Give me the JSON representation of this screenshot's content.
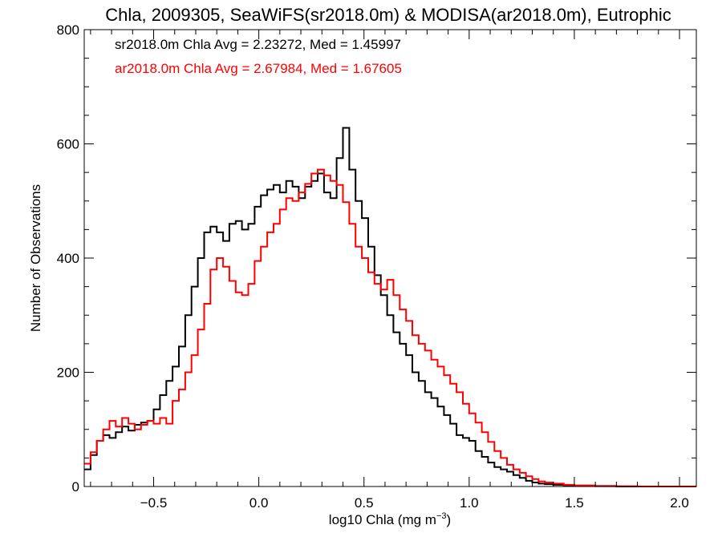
{
  "chart_data": {
    "type": "histogram-step",
    "title": "Chla, 2009305, SeaWiFS(sr2018.0m) & MODISA(ar2018.0m), Eutrophic",
    "xlabel_main": "log10 Chla (mg m",
    "xlabel_sup": "−3",
    "xlabel_end": ")",
    "ylabel": "Number of Observations",
    "xlim": [
      -0.83,
      2.08
    ],
    "ylim": [
      0,
      800
    ],
    "x_ticks": [
      -0.5,
      0.0,
      0.5,
      1.0,
      1.5,
      2.0
    ],
    "x_tick_labels": [
      "−0.5",
      "0.0",
      "0.5",
      "1.0",
      "1.5",
      "2.0"
    ],
    "y_ticks": [
      0,
      200,
      400,
      600,
      800
    ],
    "y_tick_labels": [
      "0",
      "200",
      "400",
      "600",
      "800"
    ],
    "stats": [
      {
        "text": "sr2018.0m Chla Avg = 2.23272, Med = 1.45997",
        "color": "#000000"
      },
      {
        "text": "ar2018.0m Chla Avg = 2.67984, Med = 1.67605",
        "color": "#ff0000"
      }
    ],
    "series": [
      {
        "key": "sr2018.0m",
        "color": "#000000",
        "points": [
          [
            -0.83,
            30
          ],
          [
            -0.8,
            55
          ],
          [
            -0.77,
            80
          ],
          [
            -0.74,
            90
          ],
          [
            -0.71,
            85
          ],
          [
            -0.68,
            95
          ],
          [
            -0.65,
            105
          ],
          [
            -0.62,
            98
          ],
          [
            -0.59,
            108
          ],
          [
            -0.56,
            112
          ],
          [
            -0.53,
            115
          ],
          [
            -0.5,
            135
          ],
          [
            -0.47,
            160
          ],
          [
            -0.44,
            185
          ],
          [
            -0.41,
            210
          ],
          [
            -0.38,
            245
          ],
          [
            -0.35,
            300
          ],
          [
            -0.32,
            350
          ],
          [
            -0.29,
            400
          ],
          [
            -0.26,
            445
          ],
          [
            -0.23,
            455
          ],
          [
            -0.2,
            445
          ],
          [
            -0.17,
            430
          ],
          [
            -0.14,
            460
          ],
          [
            -0.11,
            465
          ],
          [
            -0.08,
            450
          ],
          [
            -0.05,
            460
          ],
          [
            -0.02,
            490
          ],
          [
            0.01,
            510
          ],
          [
            0.04,
            520
          ],
          [
            0.07,
            528
          ],
          [
            0.1,
            515
          ],
          [
            0.13,
            535
          ],
          [
            0.16,
            525
          ],
          [
            0.19,
            505
          ],
          [
            0.22,
            525
          ],
          [
            0.25,
            535
          ],
          [
            0.28,
            548
          ],
          [
            0.31,
            515
          ],
          [
            0.34,
            505
          ],
          [
            0.37,
            575
          ],
          [
            0.4,
            628
          ],
          [
            0.43,
            555
          ],
          [
            0.46,
            500
          ],
          [
            0.49,
            470
          ],
          [
            0.52,
            420
          ],
          [
            0.55,
            370
          ],
          [
            0.58,
            335
          ],
          [
            0.61,
            300
          ],
          [
            0.64,
            270
          ],
          [
            0.67,
            250
          ],
          [
            0.7,
            230
          ],
          [
            0.73,
            200
          ],
          [
            0.76,
            185
          ],
          [
            0.79,
            165
          ],
          [
            0.82,
            155
          ],
          [
            0.85,
            140
          ],
          [
            0.88,
            125
          ],
          [
            0.91,
            110
          ],
          [
            0.94,
            90
          ],
          [
            0.97,
            85
          ],
          [
            1.0,
            80
          ],
          [
            1.03,
            62
          ],
          [
            1.06,
            52
          ],
          [
            1.09,
            42
          ],
          [
            1.12,
            34
          ],
          [
            1.15,
            30
          ],
          [
            1.18,
            26
          ],
          [
            1.21,
            20
          ],
          [
            1.24,
            15
          ],
          [
            1.27,
            10
          ],
          [
            1.3,
            7
          ],
          [
            1.33,
            5
          ],
          [
            1.36,
            4
          ],
          [
            1.4,
            3
          ],
          [
            1.45,
            2
          ],
          [
            1.5,
            1
          ],
          [
            1.6,
            0.5
          ],
          [
            1.7,
            0
          ],
          [
            2.08,
            0
          ]
        ]
      },
      {
        "key": "ar2018.0m",
        "color": "#ff0000",
        "points": [
          [
            -0.83,
            40
          ],
          [
            -0.8,
            60
          ],
          [
            -0.77,
            80
          ],
          [
            -0.74,
            100
          ],
          [
            -0.71,
            115
          ],
          [
            -0.68,
            105
          ],
          [
            -0.65,
            120
          ],
          [
            -0.62,
            110
          ],
          [
            -0.59,
            100
          ],
          [
            -0.56,
            108
          ],
          [
            -0.53,
            115
          ],
          [
            -0.5,
            110
          ],
          [
            -0.47,
            120
          ],
          [
            -0.44,
            110
          ],
          [
            -0.41,
            150
          ],
          [
            -0.38,
            170
          ],
          [
            -0.35,
            200
          ],
          [
            -0.32,
            230
          ],
          [
            -0.29,
            275
          ],
          [
            -0.26,
            320
          ],
          [
            -0.23,
            380
          ],
          [
            -0.2,
            400
          ],
          [
            -0.17,
            385
          ],
          [
            -0.14,
            360
          ],
          [
            -0.11,
            340
          ],
          [
            -0.08,
            335
          ],
          [
            -0.05,
            355
          ],
          [
            -0.02,
            395
          ],
          [
            0.01,
            420
          ],
          [
            0.04,
            445
          ],
          [
            0.07,
            460
          ],
          [
            0.1,
            485
          ],
          [
            0.13,
            505
          ],
          [
            0.16,
            500
          ],
          [
            0.19,
            515
          ],
          [
            0.22,
            530
          ],
          [
            0.25,
            548
          ],
          [
            0.28,
            555
          ],
          [
            0.31,
            545
          ],
          [
            0.34,
            535
          ],
          [
            0.37,
            528
          ],
          [
            0.4,
            498
          ],
          [
            0.43,
            460
          ],
          [
            0.46,
            420
          ],
          [
            0.49,
            400
          ],
          [
            0.52,
            375
          ],
          [
            0.55,
            355
          ],
          [
            0.58,
            345
          ],
          [
            0.61,
            362
          ],
          [
            0.64,
            335
          ],
          [
            0.67,
            310
          ],
          [
            0.7,
            290
          ],
          [
            0.73,
            265
          ],
          [
            0.76,
            250
          ],
          [
            0.79,
            238
          ],
          [
            0.82,
            222
          ],
          [
            0.85,
            210
          ],
          [
            0.88,
            195
          ],
          [
            0.91,
            180
          ],
          [
            0.94,
            165
          ],
          [
            0.97,
            145
          ],
          [
            1.0,
            128
          ],
          [
            1.03,
            112
          ],
          [
            1.06,
            95
          ],
          [
            1.09,
            78
          ],
          [
            1.12,
            62
          ],
          [
            1.15,
            50
          ],
          [
            1.18,
            38
          ],
          [
            1.21,
            30
          ],
          [
            1.24,
            24
          ],
          [
            1.27,
            18
          ],
          [
            1.3,
            13
          ],
          [
            1.33,
            9
          ],
          [
            1.36,
            7
          ],
          [
            1.4,
            5
          ],
          [
            1.45,
            3
          ],
          [
            1.5,
            2
          ],
          [
            1.6,
            1
          ],
          [
            1.7,
            0.5
          ],
          [
            1.8,
            0
          ],
          [
            2.08,
            0
          ]
        ]
      }
    ]
  }
}
